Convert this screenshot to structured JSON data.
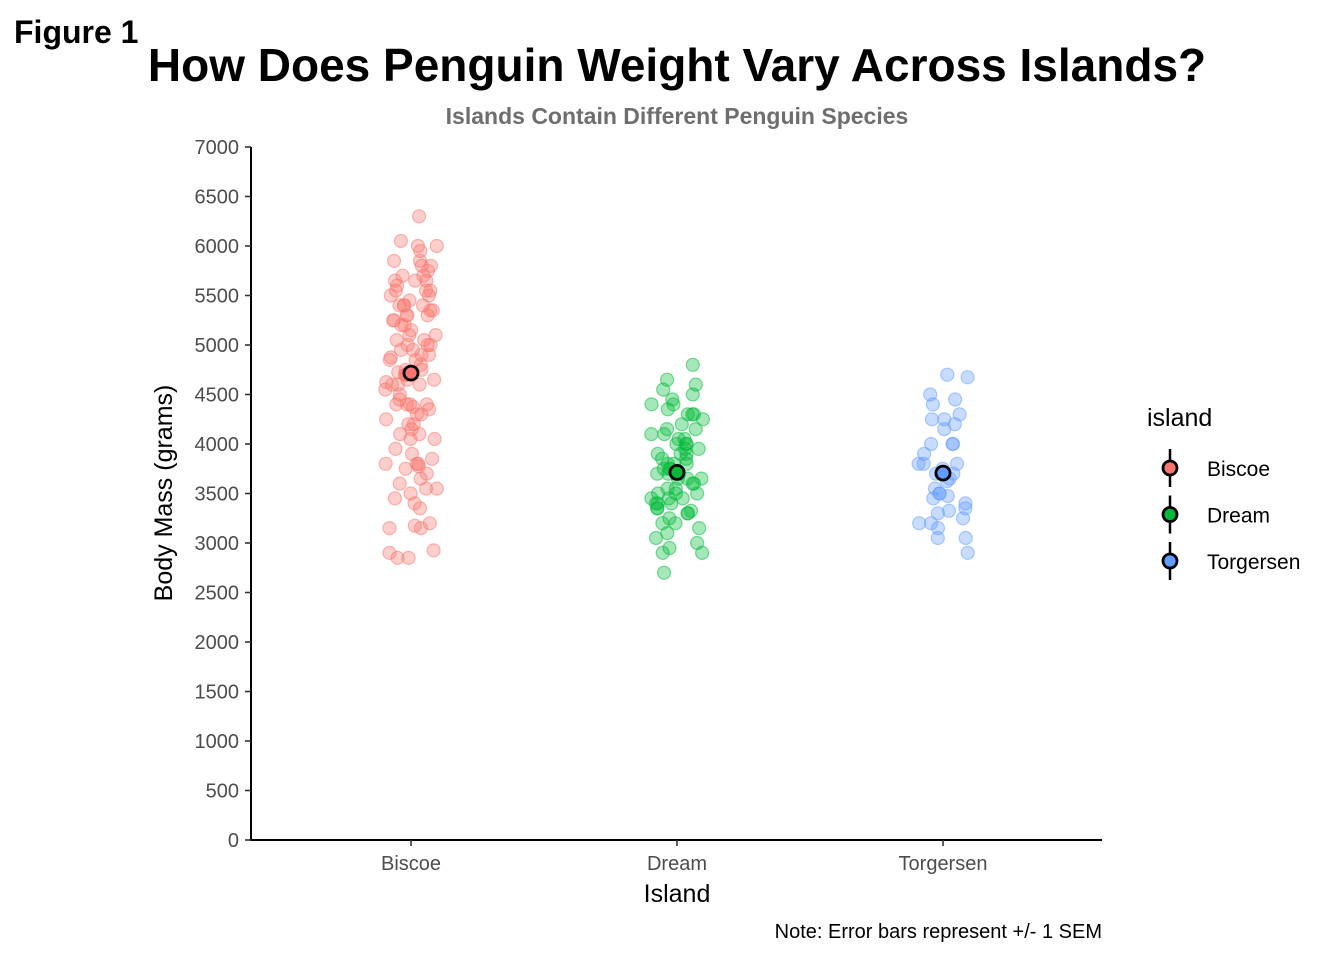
{
  "figure_label": "Figure 1",
  "chart_data": {
    "type": "scatter",
    "title": "How Does Penguin Weight Vary Across Islands?",
    "subtitle": "Islands Contain Different Penguin Species",
    "xlabel": "Island",
    "ylabel": "Body Mass (grams)",
    "caption": "Note: Error bars represent +/- 1 SEM",
    "categories": [
      "Biscoe",
      "Dream",
      "Torgersen"
    ],
    "ylim": [
      0,
      7000
    ],
    "yticks": [
      0,
      500,
      1000,
      1500,
      2000,
      2500,
      3000,
      3500,
      4000,
      4500,
      5000,
      5500,
      6000,
      6500,
      7000
    ],
    "grid": false,
    "legend": {
      "title": "island",
      "position": "right",
      "entries": [
        "Biscoe",
        "Dream",
        "Torgersen"
      ]
    },
    "colors": {
      "Biscoe": "#F8766D",
      "Dream": "#00BA38",
      "Torgersen": "#619CFF"
    },
    "series": [
      {
        "name": "Biscoe",
        "mean": 4716,
        "sem": 72,
        "values": [
          6300,
          6050,
          6000,
          6000,
          5950,
          5850,
          5850,
          5800,
          5800,
          5750,
          5700,
          5700,
          5650,
          5650,
          5650,
          5600,
          5550,
          5550,
          5550,
          5500,
          5500,
          5450,
          5400,
          5400,
          5400,
          5400,
          5350,
          5350,
          5300,
          5300,
          5300,
          5250,
          5250,
          5200,
          5200,
          5150,
          5100,
          5100,
          5050,
          5050,
          5000,
          5000,
          5000,
          4950,
          4950,
          4900,
          4900,
          4875,
          4850,
          4850,
          4800,
          4750,
          4750,
          4725,
          4700,
          4700,
          4700,
          4650,
          4650,
          4625,
          4600,
          4600,
          4600,
          4550,
          4500,
          4450,
          4400,
          4400,
          4400,
          4400,
          4375,
          4350,
          4300,
          4300,
          4250,
          4200,
          4200,
          4150,
          4100,
          4100,
          4050,
          4050,
          3950,
          3900,
          3850,
          3800,
          3800,
          3800,
          3775,
          3750,
          3700,
          3650,
          3600,
          3550,
          3550,
          3500,
          3450,
          3400,
          3350,
          3200,
          3175,
          3150,
          3150,
          2925,
          2900,
          2850,
          2850
        ]
      },
      {
        "name": "Dream",
        "mean": 3713,
        "sem": 37,
        "values": [
          4800,
          4650,
          4600,
          4550,
          4500,
          4450,
          4400,
          4400,
          4350,
          4300,
          4300,
          4300,
          4250,
          4200,
          4150,
          4150,
          4100,
          4100,
          4050,
          4050,
          4000,
          4000,
          4000,
          3950,
          3950,
          3900,
          3900,
          3900,
          3850,
          3850,
          3800,
          3800,
          3800,
          3750,
          3750,
          3750,
          3700,
          3700,
          3700,
          3650,
          3650,
          3650,
          3600,
          3600,
          3550,
          3550,
          3500,
          3500,
          3500,
          3450,
          3450,
          3450,
          3400,
          3400,
          3400,
          3350,
          3350,
          3325,
          3300,
          3300,
          3250,
          3200,
          3200,
          3150,
          3100,
          3050,
          3000,
          2950,
          2900,
          2900,
          2700
        ]
      },
      {
        "name": "Torgersen",
        "mean": 3706,
        "sem": 71,
        "values": [
          4700,
          4675,
          4500,
          4450,
          4400,
          4300,
          4250,
          4250,
          4200,
          4150,
          4000,
          4000,
          4000,
          3900,
          3800,
          3800,
          3800,
          3750,
          3700,
          3700,
          3700,
          3650,
          3625,
          3550,
          3500,
          3500,
          3475,
          3450,
          3400,
          3350,
          3325,
          3300,
          3250,
          3200,
          3200,
          3150,
          3050,
          3050,
          2900
        ]
      }
    ]
  }
}
